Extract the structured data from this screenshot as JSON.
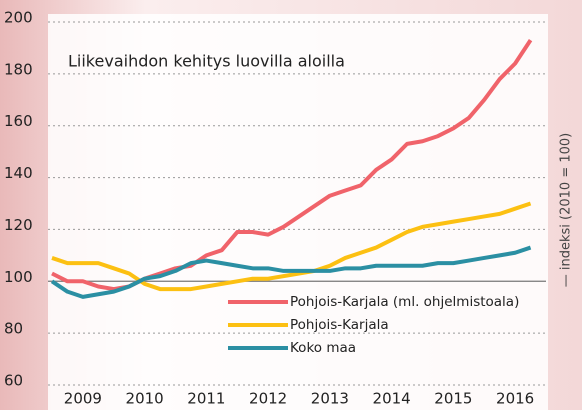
{
  "chart_data": {
    "type": "line",
    "title": "Liikevaihdon kehitys luovilla aloilla",
    "y_label": "— indeksi (2010 = 100)",
    "x": [
      2009,
      2009.25,
      2009.5,
      2009.75,
      2010,
      2010.25,
      2010.5,
      2010.75,
      2011,
      2011.25,
      2011.5,
      2011.75,
      2012,
      2012.25,
      2012.5,
      2012.75,
      2013,
      2013.25,
      2013.5,
      2013.75,
      2014,
      2014.25,
      2014.5,
      2014.75,
      2015,
      2015.25,
      2015.5,
      2015.75,
      2016,
      2016.25,
      2016.5,
      2016.75
    ],
    "series": [
      {
        "name": "Pohjois-Karjala (ml. ohjelmistoala)",
        "color": "#f0636a",
        "values": [
          103,
          100,
          100,
          98,
          97,
          98,
          101,
          103,
          105,
          106,
          110,
          112,
          119,
          119,
          118,
          121,
          125,
          129,
          133,
          135,
          137,
          143,
          147,
          153,
          154,
          156,
          159,
          163,
          170,
          178,
          184,
          193
        ]
      },
      {
        "name": "Pohjois-Karjala",
        "color": "#fcc012",
        "values": [
          109,
          107,
          107,
          107,
          105,
          103,
          99,
          97,
          97,
          97,
          98,
          99,
          100,
          101,
          101,
          102,
          103,
          104,
          106,
          109,
          111,
          113,
          116,
          119,
          121,
          122,
          123,
          124,
          125,
          126,
          128,
          130
        ]
      },
      {
        "name": "Koko maa",
        "color": "#2b8fa3",
        "values": [
          100,
          96,
          94,
          95,
          96,
          98,
          101,
          102,
          104,
          107,
          108,
          107,
          106,
          105,
          105,
          104,
          104,
          104,
          104,
          105,
          105,
          106,
          106,
          106,
          106,
          107,
          107,
          108,
          109,
          110,
          111,
          113
        ]
      }
    ],
    "xlim": [
      2009,
      2017
    ],
    "xticks": [
      {
        "value": 2009.5,
        "label": "2009"
      },
      {
        "value": 2010.5,
        "label": "2010"
      },
      {
        "value": 2011.5,
        "label": "2011"
      },
      {
        "value": 2012.5,
        "label": "2012"
      },
      {
        "value": 2013.5,
        "label": "2013"
      },
      {
        "value": 2014.5,
        "label": "2014"
      },
      {
        "value": 2015.5,
        "label": "2015"
      },
      {
        "value": 2016.5,
        "label": "2016"
      }
    ],
    "ylim": [
      60,
      200
    ],
    "yticks": [
      60,
      80,
      100,
      120,
      140,
      160,
      180,
      200
    ],
    "baseline": 100,
    "grid": true
  }
}
